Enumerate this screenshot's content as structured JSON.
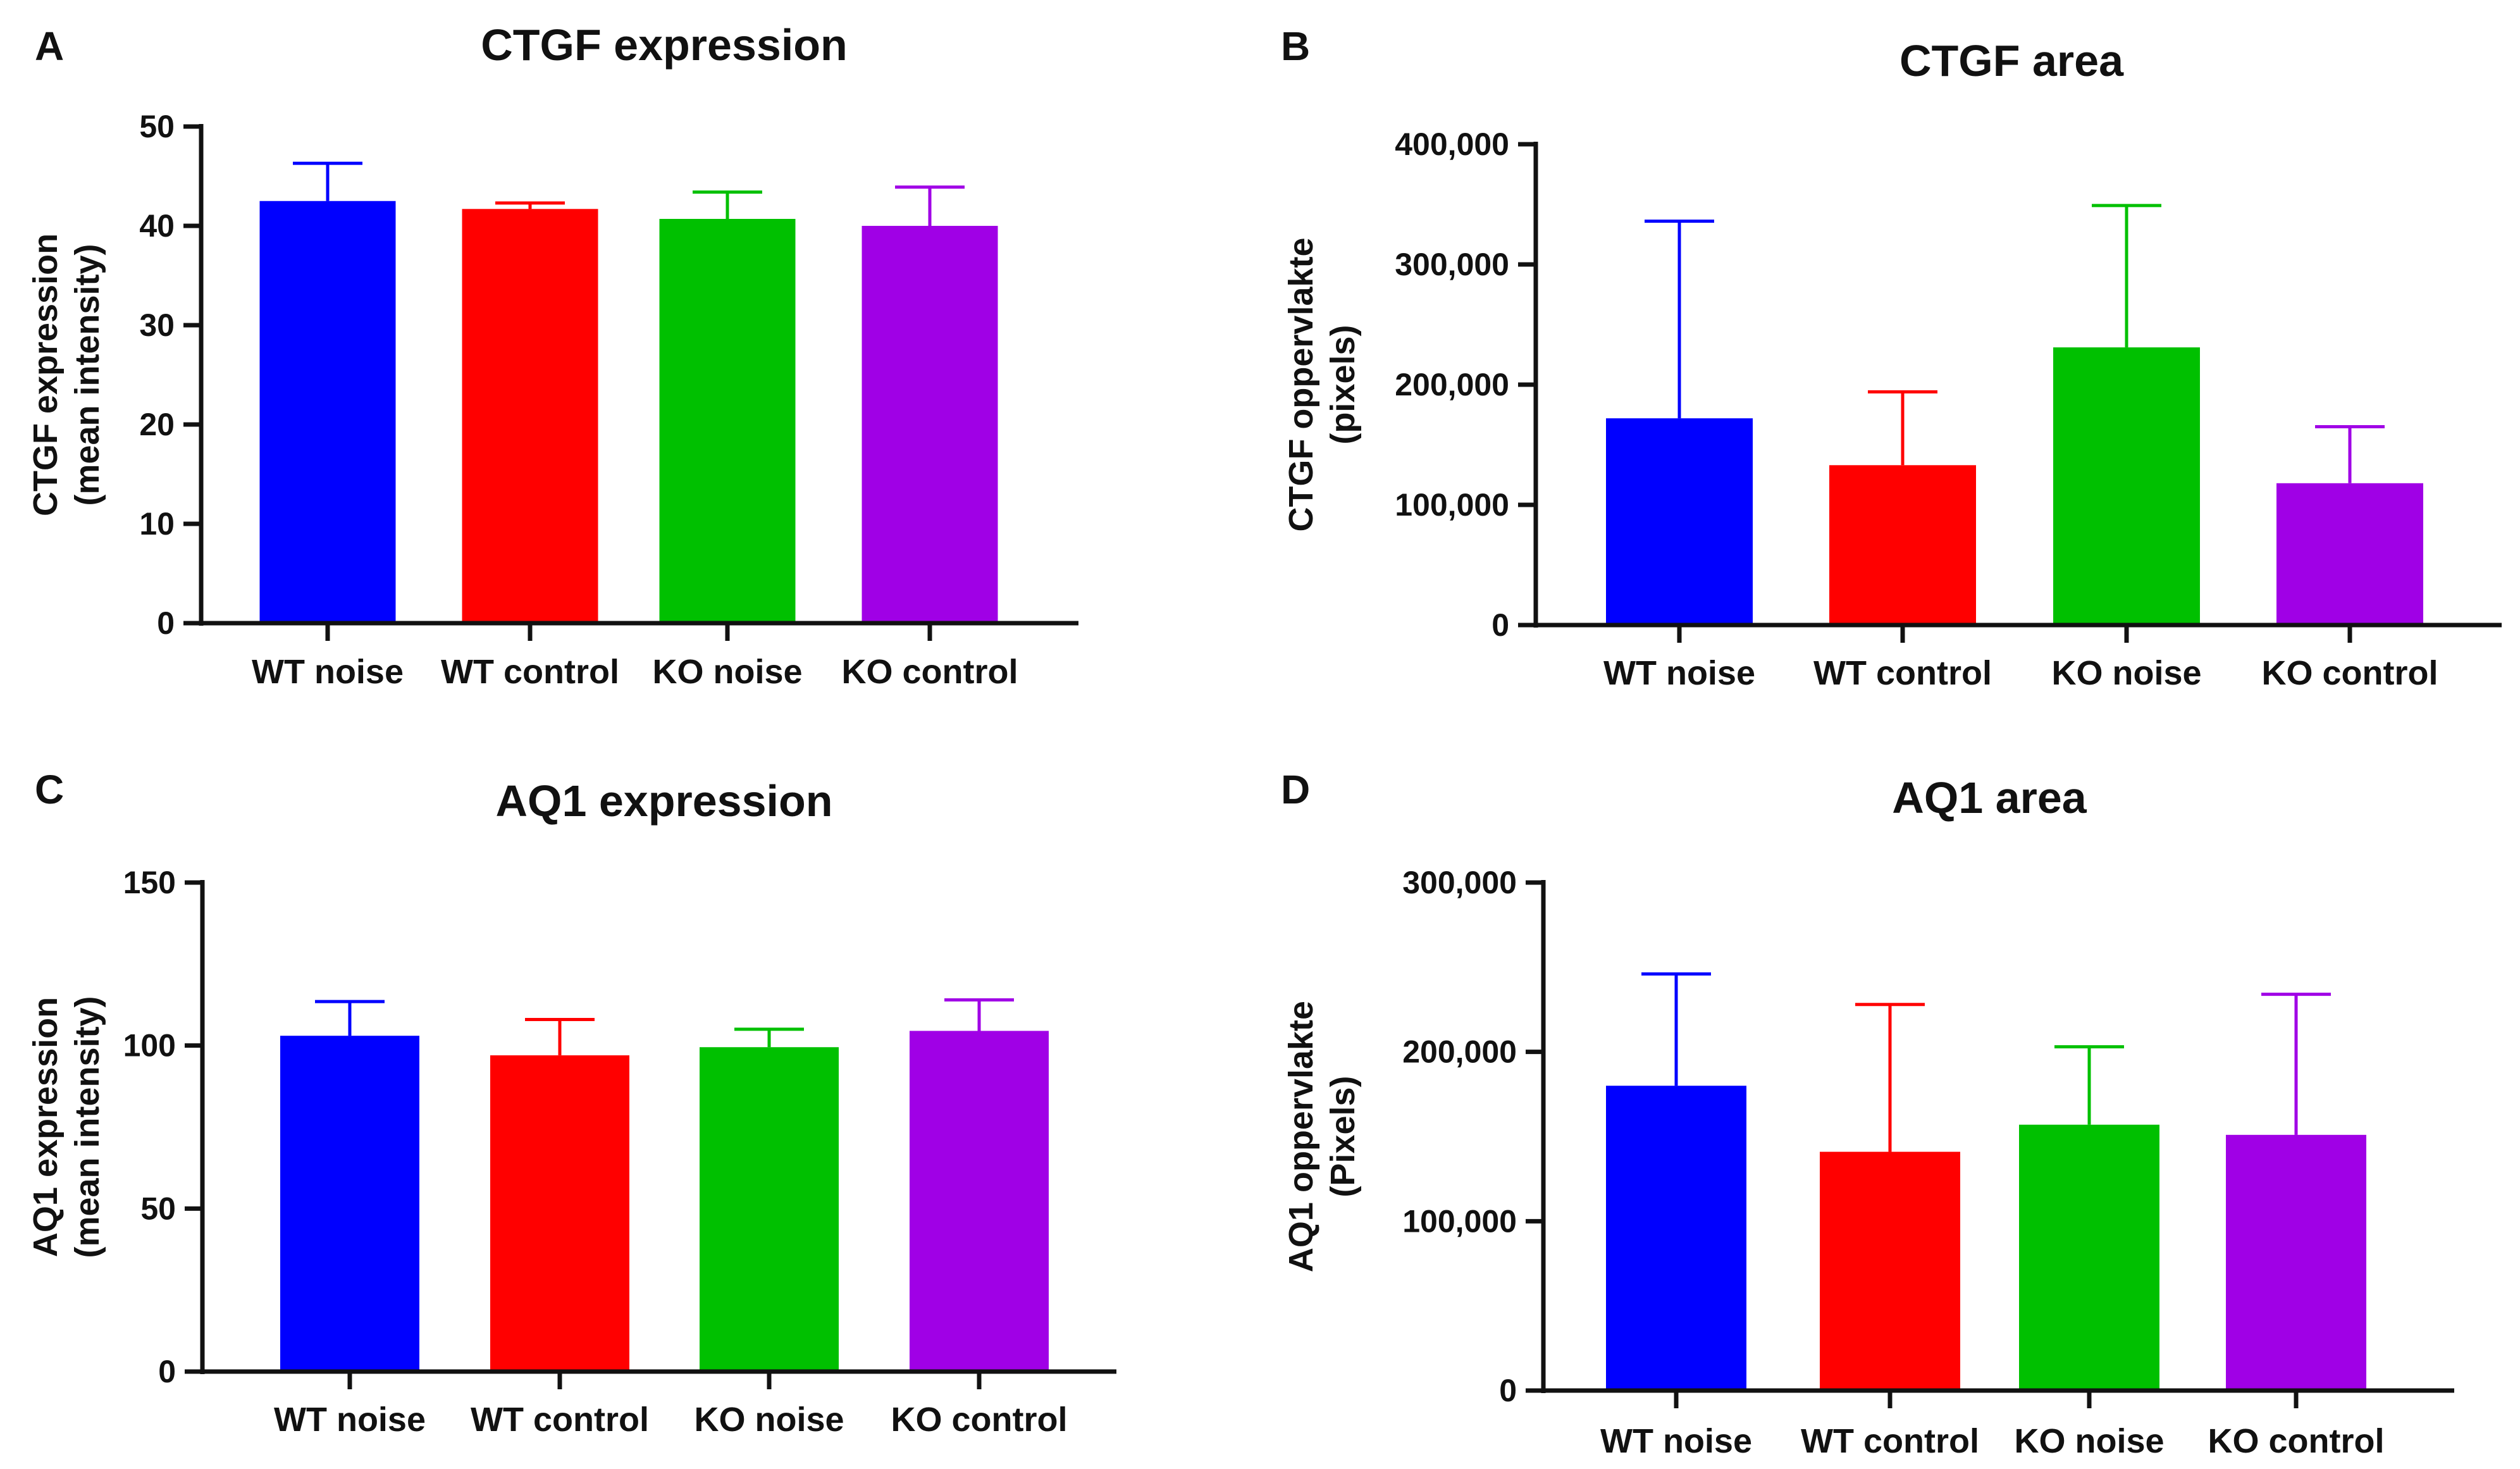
{
  "colors": {
    "wt_noise": "#0000ff",
    "wt_control": "#ff0000",
    "ko_noise": "#00c000",
    "ko_control": "#a000e6",
    "axis": "#111111"
  },
  "chart_data": [
    {
      "panel": "A",
      "type": "bar",
      "title": "CTGF expression",
      "ylabel_lines": [
        "CTGF expression",
        "(mean intensity)"
      ],
      "xlabel": "",
      "categories": [
        "WT noise",
        "WT control",
        "KO noise",
        "KO control"
      ],
      "values": [
        42.5,
        41.7,
        40.7,
        40.0
      ],
      "errors": [
        3.8,
        0.6,
        2.7,
        3.9
      ],
      "ylim": [
        0,
        50
      ],
      "yticks": [
        0,
        10,
        20,
        30,
        40,
        50
      ],
      "ytick_labels": [
        "0",
        "10",
        "20",
        "30",
        "40",
        "50"
      ],
      "bar_colors": [
        "#0000ff",
        "#ff0000",
        "#00c000",
        "#a000e6"
      ],
      "grid": false
    },
    {
      "panel": "B",
      "type": "bar",
      "title": "CTGF area",
      "ylabel_lines": [
        "CTGF oppervlakte",
        "(pixels)"
      ],
      "xlabel": "",
      "categories": [
        "WT noise",
        "WT control",
        "KO noise",
        "KO control"
      ],
      "values": [
        172000,
        133000,
        231000,
        118000
      ],
      "errors": [
        164000,
        61000,
        118000,
        47000
      ],
      "ylim": [
        0,
        400000
      ],
      "yticks": [
        0,
        100000,
        200000,
        300000,
        400000
      ],
      "ytick_labels": [
        "0",
        "100,000",
        "200,000",
        "300,000",
        "400,000"
      ],
      "bar_colors": [
        "#0000ff",
        "#ff0000",
        "#00c000",
        "#a000e6"
      ],
      "grid": false
    },
    {
      "panel": "C",
      "type": "bar",
      "title": "AQ1 expression",
      "ylabel_lines": [
        "AQ1 expression",
        "(mean intensity)"
      ],
      "xlabel": "",
      "categories": [
        "WT noise",
        "WT control",
        "KO noise",
        "KO control"
      ],
      "values": [
        103,
        97,
        99.5,
        104.5
      ],
      "errors": [
        10.5,
        11,
        5.5,
        9.5
      ],
      "ylim": [
        0,
        150
      ],
      "yticks": [
        0,
        50,
        100,
        150
      ],
      "ytick_labels": [
        "0",
        "50",
        "100",
        "150"
      ],
      "bar_colors": [
        "#0000ff",
        "#ff0000",
        "#00c000",
        "#a000e6"
      ],
      "grid": false
    },
    {
      "panel": "D",
      "type": "bar",
      "title": "AQ1 area",
      "ylabel_lines": [
        "AQ1 oppervlakte",
        "(Pixels)"
      ],
      "xlabel": "",
      "categories": [
        "WT noise",
        "WT control",
        "KO noise",
        "KO control"
      ],
      "values": [
        180000,
        141000,
        157000,
        151000
      ],
      "errors": [
        66000,
        87000,
        46000,
        83000
      ],
      "ylim": [
        0,
        300000
      ],
      "yticks": [
        0,
        100000,
        200000,
        300000
      ],
      "ytick_labels": [
        "0",
        "100,000",
        "200,000",
        "300,000"
      ],
      "bar_colors": [
        "#0000ff",
        "#ff0000",
        "#00c000",
        "#a000e6"
      ],
      "grid": false
    }
  ]
}
